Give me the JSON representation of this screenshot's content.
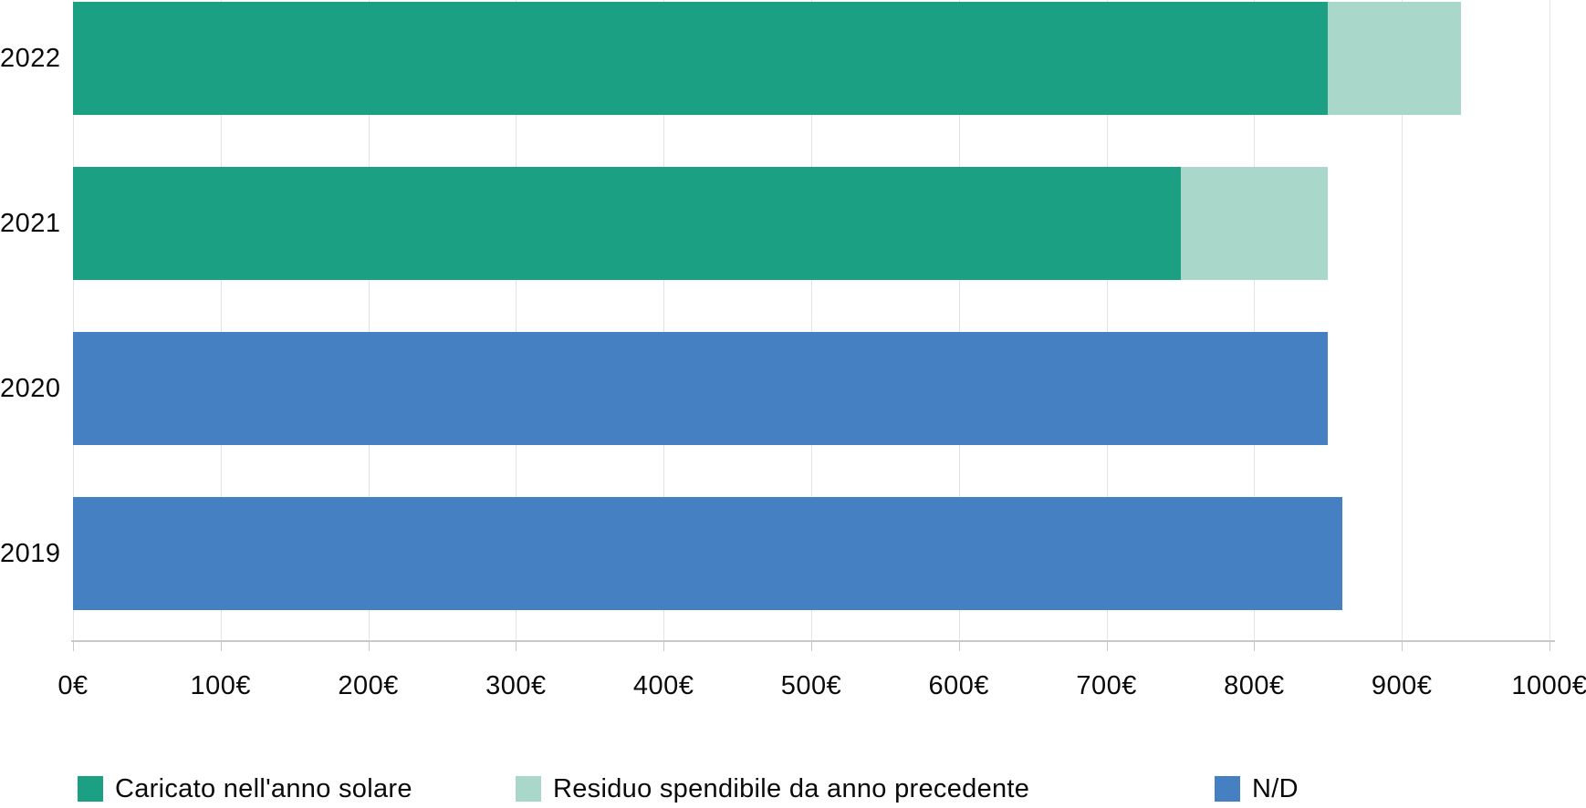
{
  "chart_data": {
    "type": "bar",
    "orientation": "horizontal",
    "stacked": true,
    "title": "",
    "xlabel": "",
    "ylabel": "",
    "categories": [
      "2022",
      "2021",
      "2020",
      "2019"
    ],
    "series": [
      {
        "name": "Caricato nell'anno solare",
        "color": "#1BA083",
        "values": [
          850,
          750,
          0,
          0
        ]
      },
      {
        "name": "Residuo spendibile da anno precedente",
        "color": "#A9D8CA",
        "values": [
          90,
          100,
          0,
          0
        ]
      },
      {
        "name": "N/D",
        "color": "#4480C2",
        "values": [
          0,
          0,
          850,
          860
        ]
      }
    ],
    "totals": [
      940,
      850,
      850,
      860
    ],
    "xlim": [
      0,
      1000
    ],
    "x_tick_step": 100,
    "x_ticks": [
      {
        "value": 0,
        "label": "0€"
      },
      {
        "value": 100,
        "label": "100€"
      },
      {
        "value": 200,
        "label": "200€"
      },
      {
        "value": 300,
        "label": "300€"
      },
      {
        "value": 400,
        "label": "400€"
      },
      {
        "value": 500,
        "label": "500€"
      },
      {
        "value": 600,
        "label": "600€"
      },
      {
        "value": 700,
        "label": "700€"
      },
      {
        "value": 800,
        "label": "800€"
      },
      {
        "value": 900,
        "label": "900€"
      },
      {
        "value": 1000,
        "label": "1000€"
      }
    ],
    "grid": "vertical",
    "legend_position": "bottom",
    "colors": {
      "gridline": "#E3E3E3",
      "axis": "#C9C9C9",
      "text": "#0A0A0A",
      "background": "#FFFFFF"
    }
  }
}
